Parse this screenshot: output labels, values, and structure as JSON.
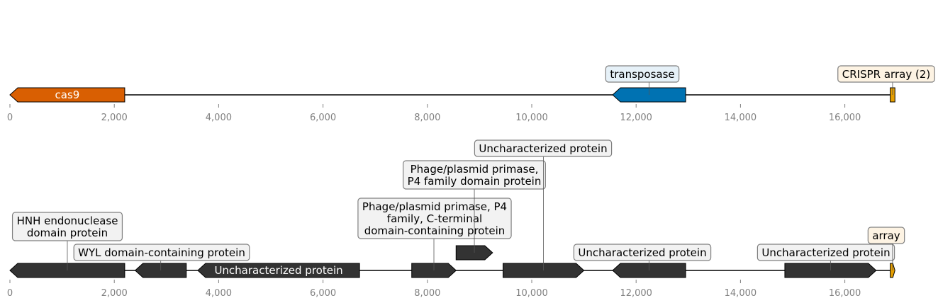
{
  "colors": {
    "cas9": "#d95f02",
    "transposase": "#0072b2",
    "crispr": "#e69f00",
    "gene": "#333333",
    "outline": "#000000",
    "tick_text": "#808080",
    "box_grey_fill": "#f2f2f2",
    "box_blue_fill": "#e6f1f8",
    "box_orange_fill": "#fdf3e3",
    "box_stroke": "#808080"
  },
  "tracks": [
    {
      "id": "track-top",
      "axis": {
        "ticks": [
          0,
          2000,
          4000,
          6000,
          8000,
          10000,
          12000,
          14000,
          16000
        ],
        "tick_labels": [
          "0",
          "2,000",
          "4,000",
          "6,000",
          "8,000",
          "10,000",
          "12,000",
          "14,000",
          "16,000"
        ]
      },
      "features": [
        {
          "name": "cas9-feature",
          "start": 0,
          "end": 2200,
          "strand": -1,
          "color": "cas9",
          "inline_label": "cas9",
          "label": ""
        },
        {
          "name": "transposase-feature",
          "start": 11550,
          "end": 12950,
          "strand": -1,
          "color": "transposase",
          "label": "transposase",
          "box": "box_blue_fill"
        },
        {
          "name": "crispr-array-feature",
          "start": 16870,
          "end": 16960,
          "strand": 0,
          "color": "crispr",
          "label": "CRISPR array (2)",
          "box": "box_orange_fill"
        }
      ]
    },
    {
      "id": "track-bottom",
      "axis": {
        "ticks": [
          0,
          2000,
          4000,
          6000,
          8000,
          10000,
          12000,
          14000,
          16000
        ],
        "tick_labels": [
          "0",
          "2,000",
          "4,000",
          "6,000",
          "8,000",
          "10,000",
          "12,000",
          "14,000",
          "16,000"
        ]
      },
      "features": [
        {
          "name": "hnh-endonuclease-feature",
          "start": 0,
          "end": 2200,
          "strand": -1,
          "color": "gene",
          "label": [
            "HNH endonuclease",
            "domain protein"
          ],
          "box": "box_grey_fill"
        },
        {
          "name": "wyl-domain-feature",
          "start": 2400,
          "end": 3380,
          "strand": -1,
          "color": "gene",
          "label": [
            "WYL domain-containing protein"
          ],
          "box": "box_grey_fill"
        },
        {
          "name": "uncharacterized-feature-1",
          "start": 3600,
          "end": 6700,
          "strand": -1,
          "color": "gene",
          "inline_label": "Uncharacterized protein",
          "label": ""
        },
        {
          "name": "primase-c-terminal-feature",
          "start": 7700,
          "end": 8550,
          "strand": 1,
          "color": "gene",
          "label": [
            "Phage/plasmid primase, P4",
            "family, C-terminal",
            "domain-containing protein"
          ],
          "box": "box_grey_fill"
        },
        {
          "name": "primase-p4-feature",
          "start": 8550,
          "end": 9250,
          "strand": 1,
          "color": "gene",
          "label": [
            "Phage/plasmid primase,",
            "P4 family domain protein"
          ],
          "box": "box_grey_fill",
          "elevated": true
        },
        {
          "name": "uncharacterized-feature-2",
          "start": 9450,
          "end": 11000,
          "strand": 1,
          "color": "gene",
          "label": [
            "Uncharacterized protein"
          ],
          "box": "box_grey_fill"
        },
        {
          "name": "uncharacterized-feature-3",
          "start": 11550,
          "end": 12950,
          "strand": -1,
          "color": "gene",
          "label": [
            "Uncharacterized protein"
          ],
          "box": "box_grey_fill"
        },
        {
          "name": "uncharacterized-feature-4",
          "start": 14850,
          "end": 16600,
          "strand": 1,
          "color": "gene",
          "label": [
            "Uncharacterized protein"
          ],
          "box": "box_grey_fill"
        },
        {
          "name": "array-feature",
          "start": 16870,
          "end": 16960,
          "strand": 1,
          "color": "crispr",
          "label": [
            "array"
          ],
          "box": "box_orange_fill"
        }
      ]
    }
  ]
}
